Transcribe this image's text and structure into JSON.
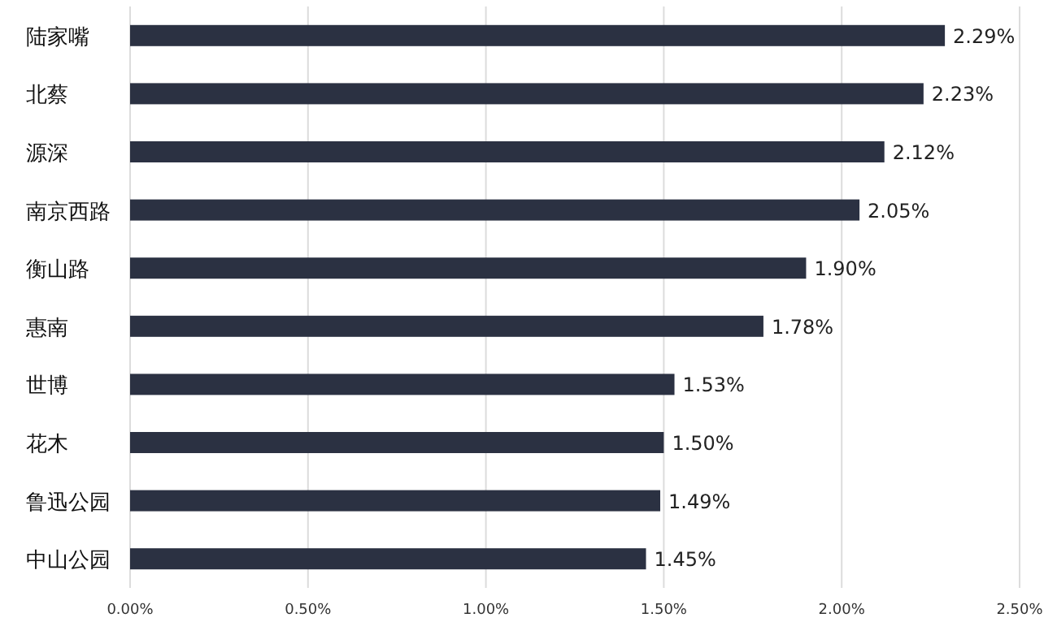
{
  "chart_data": {
    "type": "bar",
    "orientation": "horizontal",
    "categories": [
      "陆家嘴",
      "北蔡",
      "源深",
      "南京西路",
      "衡山路",
      "惠南",
      "世博",
      "花木",
      "鲁迅公园",
      "中山公园"
    ],
    "values": [
      2.29,
      2.23,
      2.12,
      2.05,
      1.9,
      1.78,
      1.53,
      1.5,
      1.49,
      1.45
    ],
    "value_labels": [
      "2.29%",
      "2.23%",
      "2.12%",
      "2.05%",
      "1.90%",
      "1.78%",
      "1.53%",
      "1.50%",
      "1.49%",
      "1.45%"
    ],
    "color": "#2b3142",
    "xlim": [
      0,
      2.5
    ],
    "xticks": [
      {
        "value": 0,
        "label": "0.00%"
      },
      {
        "value": 0.5,
        "label": "0.50%"
      },
      {
        "value": 1,
        "label": "1.00%"
      },
      {
        "value": 1.5,
        "label": "1.50%"
      },
      {
        "value": 2,
        "label": "2.00%"
      },
      {
        "value": 2.5,
        "label": "2.50%"
      }
    ],
    "grid": "x"
  }
}
